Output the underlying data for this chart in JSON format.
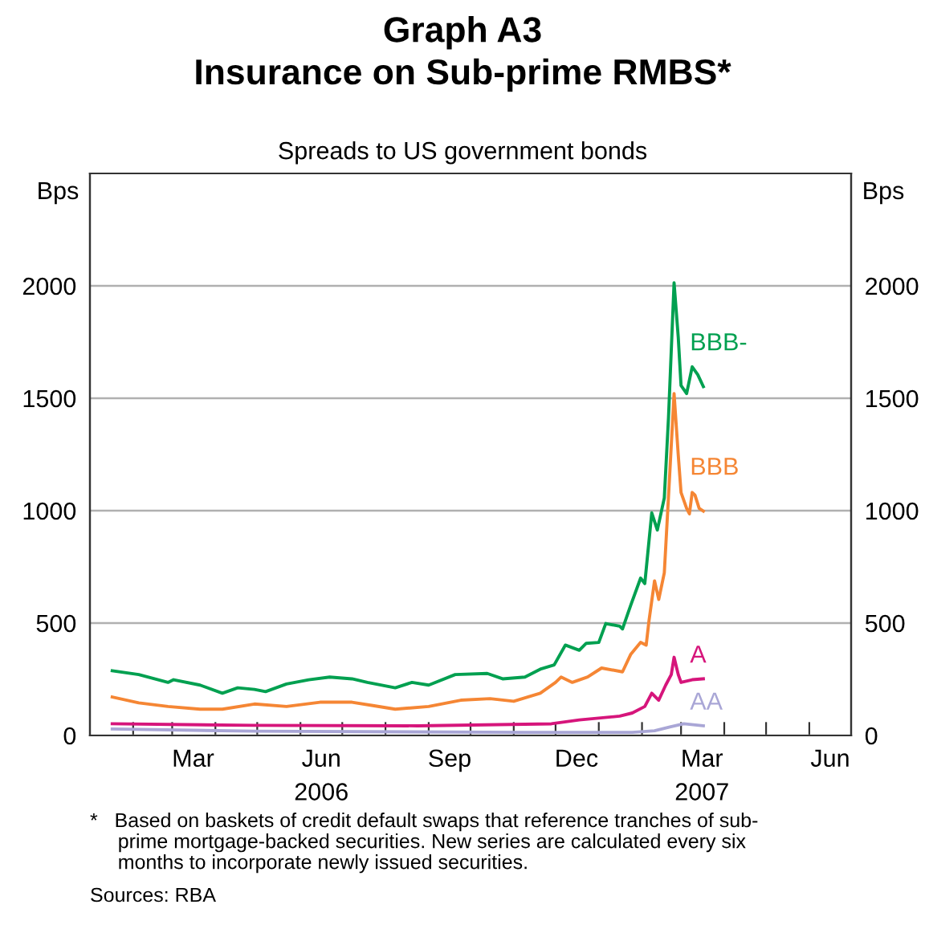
{
  "chart_data": {
    "type": "line",
    "title": "Graph A3\nInsurance on Sub-prime RMBS*",
    "subtitle": "Spreads to US government bonds",
    "ylabel": "Bps",
    "y2label": "Bps",
    "xlim": [
      "2006-01-01",
      "2007-07-01"
    ],
    "xticks": [
      {
        "value": "2006-02-01",
        "label": null
      },
      {
        "value": "2006-03-01",
        "label": null
      },
      {
        "value": "2006-04-01",
        "label": null
      },
      {
        "value": "2006-05-01",
        "label": null
      },
      {
        "value": "2006-06-01",
        "label": null
      },
      {
        "value": "2006-07-01",
        "label": null
      },
      {
        "value": "2006-08-01",
        "label": null
      },
      {
        "value": "2006-09-01",
        "label": null
      },
      {
        "value": "2006-10-01",
        "label": null
      },
      {
        "value": "2006-11-01",
        "label": null
      },
      {
        "value": "2006-12-01",
        "label": null
      },
      {
        "value": "2007-01-01",
        "label": null
      },
      {
        "value": "2007-02-01",
        "label": null
      },
      {
        "value": "2007-03-01",
        "label": null
      },
      {
        "value": "2007-04-01",
        "label": null
      },
      {
        "value": "2007-05-01",
        "label": null
      },
      {
        "value": "2007-06-01",
        "label": null
      },
      {
        "value": "2006-03-16",
        "label": "Mar"
      },
      {
        "value": "2006-06-16",
        "label": "Jun\n2006"
      },
      {
        "value": "2006-09-16",
        "label": "Sep"
      },
      {
        "value": "2006-12-16",
        "label": "Dec"
      },
      {
        "value": "2007-03-16",
        "label": "Mar\n2007"
      },
      {
        "value": "2007-06-16",
        "label": "Jun"
      }
    ],
    "ylim": [
      0,
      2500
    ],
    "yticks": [
      0,
      500,
      1000,
      1500,
      2000
    ],
    "y2lim": [
      0,
      2500
    ],
    "y2ticks": [
      0,
      500,
      1000,
      1500,
      2000
    ],
    "grid": "y",
    "legend": false,
    "series": [
      {
        "name": "BBB-",
        "color": "#00a050",
        "x": [
          "2006-01-17",
          "2006-02-05",
          "2006-02-26",
          "2006-03-02",
          "2006-03-21",
          "2006-04-06",
          "2006-04-17",
          "2006-04-29",
          "2006-05-07",
          "2006-05-22",
          "2006-06-07",
          "2006-06-22",
          "2006-07-08",
          "2006-07-19",
          "2006-08-08",
          "2006-08-20",
          "2006-09-01",
          "2006-09-20",
          "2006-10-13",
          "2006-10-24",
          "2006-11-09",
          "2006-11-20",
          "2006-11-30",
          "2006-12-08",
          "2006-12-18",
          "2006-12-23",
          "2007-01-01",
          "2007-01-06",
          "2007-01-16",
          "2007-01-18",
          "2007-01-24",
          "2007-01-31",
          "2007-02-03",
          "2007-02-08",
          "2007-02-12",
          "2007-02-17",
          "2007-02-20",
          "2007-02-24",
          "2007-02-27",
          "2007-03-01",
          "2007-03-05",
          "2007-03-09",
          "2007-03-13",
          "2007-03-17"
        ],
        "values": [
          288,
          271,
          236,
          248,
          224,
          188,
          212,
          205,
          195,
          229,
          248,
          260,
          252,
          236,
          212,
          236,
          224,
          271,
          276,
          252,
          260,
          295,
          314,
          402,
          379,
          410,
          414,
          498,
          486,
          474,
          581,
          700,
          676,
          990,
          914,
          1057,
          1414,
          2014,
          1771,
          1557,
          1521,
          1640,
          1605,
          1552
        ]
      },
      {
        "name": "BBB",
        "color": "#f58634",
        "x": [
          "2006-01-17",
          "2006-02-05",
          "2006-02-26",
          "2006-03-21",
          "2006-04-06",
          "2006-04-29",
          "2006-05-22",
          "2006-06-15",
          "2006-07-08",
          "2006-07-23",
          "2006-08-08",
          "2006-09-01",
          "2006-09-24",
          "2006-10-15",
          "2006-11-01",
          "2006-11-20",
          "2006-12-01",
          "2006-12-05",
          "2006-12-13",
          "2006-12-24",
          "2007-01-03",
          "2007-01-18",
          "2007-01-24",
          "2007-01-31",
          "2007-02-04",
          "2007-02-06",
          "2007-02-10",
          "2007-02-13",
          "2007-02-17",
          "2007-02-21",
          "2007-02-24",
          "2007-02-27",
          "2007-03-01",
          "2007-03-05",
          "2007-03-07",
          "2007-03-09",
          "2007-03-11",
          "2007-03-14",
          "2007-03-17"
        ],
        "values": [
          171,
          145,
          129,
          117,
          117,
          140,
          129,
          148,
          148,
          133,
          117,
          129,
          157,
          164,
          152,
          188,
          236,
          260,
          236,
          260,
          300,
          283,
          362,
          414,
          402,
          510,
          688,
          605,
          724,
          1176,
          1521,
          1248,
          1081,
          1010,
          986,
          1081,
          1069,
          1010,
          998
        ]
      },
      {
        "name": "A",
        "color": "#d6157b",
        "x": [
          "2006-01-17",
          "2006-04-29",
          "2006-08-24",
          "2006-11-28",
          "2006-12-18",
          "2007-01-16",
          "2007-01-25",
          "2007-02-03",
          "2007-02-08",
          "2007-02-13",
          "2007-02-18",
          "2007-02-22",
          "2007-02-24",
          "2007-02-27",
          "2007-03-01",
          "2007-03-09",
          "2007-03-17"
        ],
        "values": [
          52,
          45,
          43,
          52,
          69,
          86,
          100,
          129,
          188,
          157,
          224,
          271,
          348,
          271,
          236,
          248,
          252
        ]
      },
      {
        "name": "AA",
        "color": "#a9a6d6",
        "x": [
          "2006-01-17",
          "2006-04-29",
          "2006-11-09",
          "2007-01-25",
          "2007-02-10",
          "2007-02-21",
          "2007-03-03",
          "2007-03-17"
        ],
        "values": [
          29,
          19,
          14,
          14,
          21,
          38,
          52,
          43
        ]
      }
    ],
    "annotations": [
      "*   Based on baskets of credit default swaps that reference tranches of sub-\n     prime mortgage-backed securities. New series are calculated every six\n     months to incorporate newly issued securities.",
      "Sources: RBA"
    ]
  }
}
